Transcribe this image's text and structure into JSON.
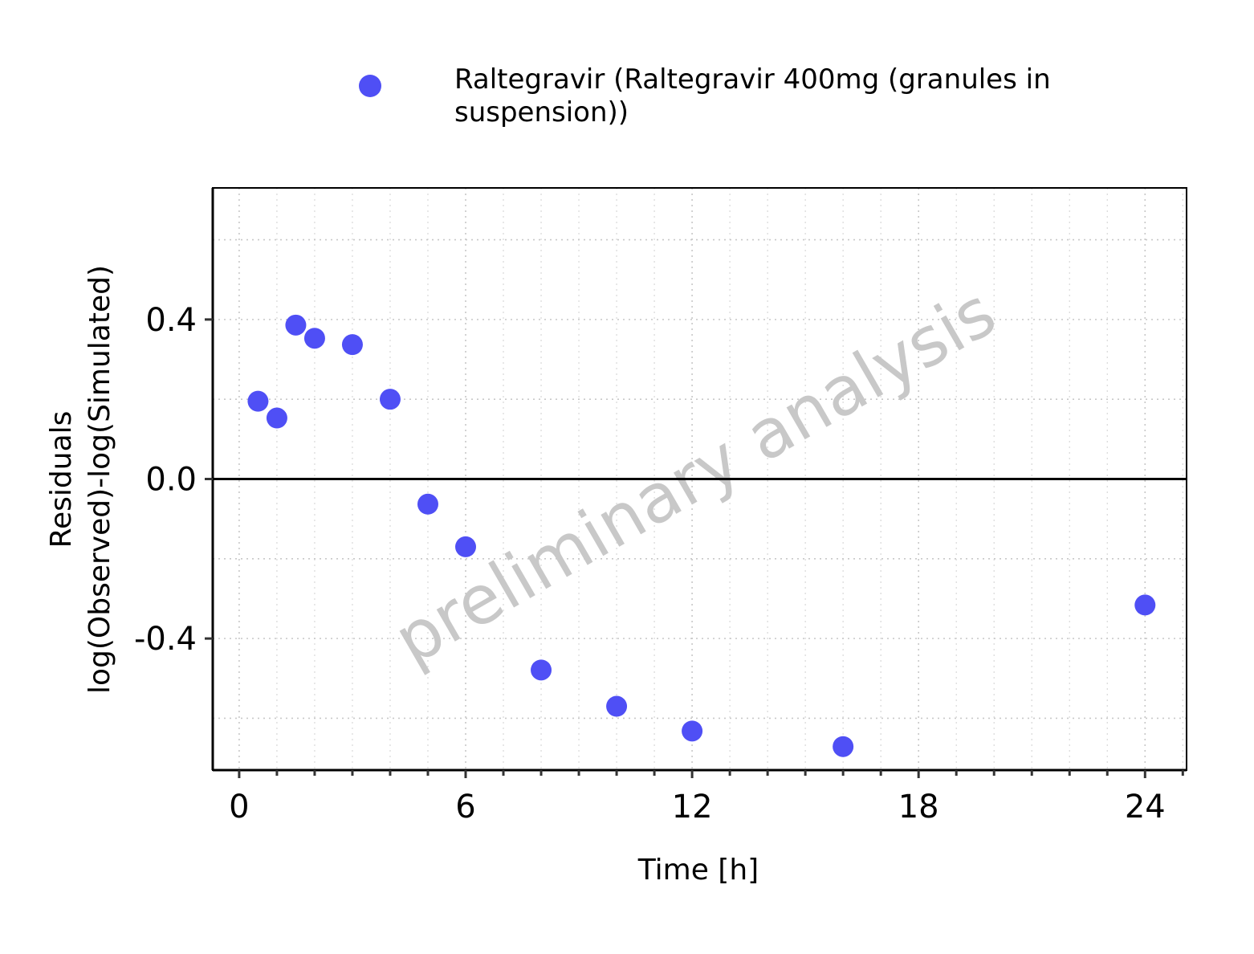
{
  "chart_data": {
    "type": "scatter",
    "title": "",
    "xlabel": "Time [h]",
    "ylabel_lines": [
      "Residuals",
      "log(Observed)-log(Simulated)"
    ],
    "xlim": [
      -0.7,
      25.1
    ],
    "ylim": [
      -0.73,
      0.73
    ],
    "xticks": [
      0,
      6,
      12,
      18,
      24
    ],
    "yticks": [
      -0.4,
      0.0,
      0.4
    ],
    "ytick_labels": [
      "-0.4",
      "0.0",
      "0.4"
    ],
    "minor_x_step": 1,
    "minor_y_step": 0.2,
    "grid": true,
    "reference_line_y": 0,
    "legend_position": "top",
    "watermark": "preliminary analysis",
    "series": [
      {
        "name_lines": [
          "Raltegravir (Raltegravir 400mg (granules in",
          "suspension))"
        ],
        "color": "#4f4ff5",
        "x": [
          0.5,
          1.0,
          1.5,
          2.0,
          3.0,
          4.0,
          5.0,
          6.0,
          8.0,
          10.0,
          12.0,
          16.0,
          24.0
        ],
        "y": [
          0.195,
          0.153,
          0.386,
          0.353,
          0.337,
          0.2,
          -0.063,
          -0.17,
          -0.479,
          -0.57,
          -0.632,
          -0.671,
          -0.316
        ]
      }
    ]
  }
}
